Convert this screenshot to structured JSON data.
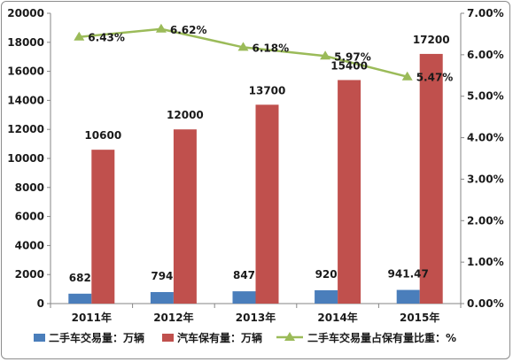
{
  "chart_data": {
    "type": "bar+line",
    "categories": [
      "2011年",
      "2012年",
      "2013年",
      "2014年",
      "2015年"
    ],
    "series": [
      {
        "name": "二手车交易量：万辆",
        "kind": "bar",
        "axis": "left",
        "color": "#4a7ebb",
        "values": [
          682,
          794,
          847,
          920,
          941.47
        ],
        "labels": [
          "682",
          "794",
          "847",
          "920",
          "941.47"
        ]
      },
      {
        "name": "汽车保有量：万辆",
        "kind": "bar",
        "axis": "left",
        "color": "#c0504d",
        "values": [
          10600,
          12000,
          13700,
          15400,
          17200
        ],
        "labels": [
          "10600",
          "12000",
          "13700",
          "15400",
          "17200"
        ]
      },
      {
        "name": "二手车交易量占保有量比重：%",
        "kind": "line",
        "axis": "right",
        "color": "#9bbb59",
        "marker": "triangle",
        "values": [
          6.43,
          6.62,
          6.18,
          5.97,
          5.47
        ],
        "labels": [
          "6.43%",
          "6.62%",
          "6.18%",
          "5.97%",
          "5.47%"
        ]
      }
    ],
    "y_left": {
      "min": 0,
      "max": 20000,
      "ticks": [
        "0",
        "2000",
        "4000",
        "6000",
        "8000",
        "10000",
        "12000",
        "14000",
        "16000",
        "18000",
        "20000"
      ]
    },
    "y_right": {
      "min": 0,
      "max": 7,
      "ticks": [
        "0.00%",
        "1.00%",
        "2.00%",
        "3.00%",
        "4.00%",
        "5.00%",
        "6.00%",
        "7.00%"
      ]
    },
    "legend_position": "bottom",
    "grid": false
  }
}
